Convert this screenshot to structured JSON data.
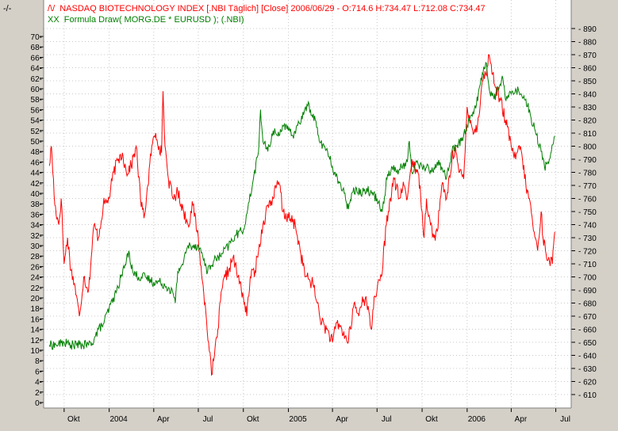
{
  "corner_label": "-/-",
  "chart_data": {
    "type": "line",
    "legend": {
      "placement": "top-left",
      "entries": [
        {
          "marker": "/\\/",
          "text": "NASDAQ BIOTECHNOLOGY INDEX [.NBI  Täglich] [Close] 2006/06/29 - O:714.6 H:734.47 L:712.08 C:734.47",
          "color": "#ff0000"
        },
        {
          "marker": "XX",
          "text": "Formula Draw( MORG.DE * EURUSD ); (.NBI)",
          "color": "#008000"
        }
      ]
    },
    "x_ticks": [
      "Okt",
      "2004",
      "Apr",
      "Jul",
      "Okt",
      "2005",
      "Apr",
      "Jul",
      "Okt",
      "2006",
      "Apr",
      "Jul"
    ],
    "left_axis": {
      "min": 0,
      "max": 70,
      "step": 2,
      "color": "#008000"
    },
    "right_axis": {
      "min": 610,
      "max": 890,
      "step": 10,
      "color": "#ff0000"
    },
    "grid": true,
    "colors": {
      "background": "#ffffff",
      "frame": "#d4d0c8",
      "grid": "#c8c8c8",
      "nbi": "#ff0000",
      "formula": "#008000"
    },
    "series": [
      {
        "name": "NASDAQ BIOTECHNOLOGY INDEX",
        "axis": "right",
        "color": "#ff0000",
        "anchors": [
          [
            "2003-09-01",
            785
          ],
          [
            "2003-09-05",
            800
          ],
          [
            "2003-09-12",
            755
          ],
          [
            "2003-09-20",
            740
          ],
          [
            "2003-09-25",
            760
          ],
          [
            "2003-10-01",
            710
          ],
          [
            "2003-10-08",
            730
          ],
          [
            "2003-10-15",
            705
          ],
          [
            "2003-10-22",
            695
          ],
          [
            "2003-11-01",
            670
          ],
          [
            "2003-11-10",
            700
          ],
          [
            "2003-11-20",
            690
          ],
          [
            "2003-12-01",
            740
          ],
          [
            "2003-12-10",
            730
          ],
          [
            "2003-12-20",
            755
          ],
          [
            "2004-01-01",
            760
          ],
          [
            "2004-01-10",
            780
          ],
          [
            "2004-01-20",
            790
          ],
          [
            "2004-01-28",
            795
          ],
          [
            "2004-02-05",
            780
          ],
          [
            "2004-02-15",
            785
          ],
          [
            "2004-02-25",
            800
          ],
          [
            "2004-03-05",
            760
          ],
          [
            "2004-03-12",
            745
          ],
          [
            "2004-03-20",
            770
          ],
          [
            "2004-03-28",
            800
          ],
          [
            "2004-04-05",
            810
          ],
          [
            "2004-04-12",
            800
          ],
          [
            "2004-04-17",
            795
          ],
          [
            "2004-04-20",
            842
          ],
          [
            "2004-04-24",
            800
          ],
          [
            "2004-05-01",
            775
          ],
          [
            "2004-05-10",
            760
          ],
          [
            "2004-05-20",
            765
          ],
          [
            "2004-06-01",
            750
          ],
          [
            "2004-06-10",
            740
          ],
          [
            "2004-06-20",
            755
          ],
          [
            "2004-07-01",
            730
          ],
          [
            "2004-07-08",
            700
          ],
          [
            "2004-07-15",
            680
          ],
          [
            "2004-07-22",
            650
          ],
          [
            "2004-07-28",
            625
          ],
          [
            "2004-08-03",
            640
          ],
          [
            "2004-08-10",
            660
          ],
          [
            "2004-08-18",
            690
          ],
          [
            "2004-08-25",
            700
          ],
          [
            "2004-09-01",
            705
          ],
          [
            "2004-09-10",
            715
          ],
          [
            "2004-09-20",
            700
          ],
          [
            "2004-10-01",
            685
          ],
          [
            "2004-10-08",
            670
          ],
          [
            "2004-10-15",
            700
          ],
          [
            "2004-10-25",
            705
          ],
          [
            "2004-11-01",
            720
          ],
          [
            "2004-11-10",
            740
          ],
          [
            "2004-11-20",
            755
          ],
          [
            "2004-12-01",
            760
          ],
          [
            "2004-12-08",
            770
          ],
          [
            "2004-12-15",
            770
          ],
          [
            "2004-12-20",
            750
          ],
          [
            "2005-01-01",
            745
          ],
          [
            "2005-01-15",
            740
          ],
          [
            "2005-01-25",
            720
          ],
          [
            "2005-02-05",
            700
          ],
          [
            "2005-02-20",
            695
          ],
          [
            "2005-03-01",
            680
          ],
          [
            "2005-03-10",
            665
          ],
          [
            "2005-03-20",
            660
          ],
          [
            "2005-04-01",
            650
          ],
          [
            "2005-04-10",
            665
          ],
          [
            "2005-04-20",
            660
          ],
          [
            "2005-05-01",
            650
          ],
          [
            "2005-05-08",
            660
          ],
          [
            "2005-05-15",
            680
          ],
          [
            "2005-05-25",
            670
          ],
          [
            "2005-06-01",
            685
          ],
          [
            "2005-06-10",
            680
          ],
          [
            "2005-06-20",
            660
          ],
          [
            "2005-06-25",
            685
          ],
          [
            "2005-07-01",
            690
          ],
          [
            "2005-07-10",
            700
          ],
          [
            "2005-07-20",
            740
          ],
          [
            "2005-07-28",
            760
          ],
          [
            "2005-08-05",
            775
          ],
          [
            "2005-08-15",
            760
          ],
          [
            "2005-08-25",
            770
          ],
          [
            "2005-09-01",
            760
          ],
          [
            "2005-09-10",
            790
          ],
          [
            "2005-09-20",
            780
          ],
          [
            "2005-09-27",
            770
          ],
          [
            "2005-10-01",
            750
          ],
          [
            "2005-10-05",
            730
          ],
          [
            "2005-10-10",
            760
          ],
          [
            "2005-10-18",
            740
          ],
          [
            "2005-10-25",
            730
          ],
          [
            "2005-11-01",
            735
          ],
          [
            "2005-11-10",
            770
          ],
          [
            "2005-11-20",
            760
          ],
          [
            "2005-12-01",
            790
          ],
          [
            "2005-12-08",
            800
          ],
          [
            "2005-12-15",
            780
          ],
          [
            "2005-12-25",
            775
          ],
          [
            "2006-01-01",
            830
          ],
          [
            "2006-01-08",
            820
          ],
          [
            "2006-01-15",
            810
          ],
          [
            "2006-01-22",
            815
          ],
          [
            "2006-02-01",
            850
          ],
          [
            "2006-02-08",
            855
          ],
          [
            "2006-02-15",
            870
          ],
          [
            "2006-02-22",
            855
          ],
          [
            "2006-03-01",
            845
          ],
          [
            "2006-03-10",
            835
          ],
          [
            "2006-03-20",
            820
          ],
          [
            "2006-04-01",
            800
          ],
          [
            "2006-04-10",
            790
          ],
          [
            "2006-04-20",
            800
          ],
          [
            "2006-05-01",
            770
          ],
          [
            "2006-05-08",
            760
          ],
          [
            "2006-05-15",
            740
          ],
          [
            "2006-05-25",
            720
          ],
          [
            "2006-06-01",
            750
          ],
          [
            "2006-06-05",
            730
          ],
          [
            "2006-06-10",
            720
          ],
          [
            "2006-06-18",
            712
          ],
          [
            "2006-06-24",
            710
          ],
          [
            "2006-06-29",
            734.47
          ]
        ]
      },
      {
        "name": "Formula Draw( MORG.DE * EURUSD ); (.NBI)",
        "axis": "left",
        "color": "#008000",
        "anchors": [
          [
            "2003-09-01",
            11
          ],
          [
            "2003-09-15",
            11
          ],
          [
            "2003-10-01",
            11.5
          ],
          [
            "2003-10-15",
            11
          ],
          [
            "2003-11-01",
            11
          ],
          [
            "2003-11-20",
            11
          ],
          [
            "2003-12-01",
            12
          ],
          [
            "2003-12-10",
            14
          ],
          [
            "2003-12-20",
            15
          ],
          [
            "2004-01-01",
            18
          ],
          [
            "2004-01-15",
            21
          ],
          [
            "2004-01-25",
            24
          ],
          [
            "2004-02-05",
            27
          ],
          [
            "2004-02-10",
            29
          ],
          [
            "2004-02-18",
            25
          ],
          [
            "2004-03-01",
            24
          ],
          [
            "2004-03-15",
            24
          ],
          [
            "2004-04-01",
            23
          ],
          [
            "2004-04-15",
            23
          ],
          [
            "2004-05-01",
            22
          ],
          [
            "2004-05-10",
            21
          ],
          [
            "2004-05-15",
            19
          ],
          [
            "2004-05-20",
            25
          ],
          [
            "2004-06-01",
            27
          ],
          [
            "2004-06-10",
            30
          ],
          [
            "2004-06-20",
            30
          ],
          [
            "2004-07-01",
            30
          ],
          [
            "2004-07-10",
            28
          ],
          [
            "2004-07-20",
            25
          ],
          [
            "2004-08-01",
            27
          ],
          [
            "2004-08-15",
            28
          ],
          [
            "2004-09-01",
            30
          ],
          [
            "2004-09-15",
            32
          ],
          [
            "2004-10-01",
            33
          ],
          [
            "2004-10-10",
            37
          ],
          [
            "2004-10-20",
            42
          ],
          [
            "2004-11-01",
            48
          ],
          [
            "2004-11-05",
            56
          ],
          [
            "2004-11-10",
            50
          ],
          [
            "2004-11-20",
            48
          ],
          [
            "2004-12-01",
            52
          ],
          [
            "2004-12-10",
            51
          ],
          [
            "2004-12-20",
            53
          ],
          [
            "2005-01-01",
            52
          ],
          [
            "2005-01-10",
            51
          ],
          [
            "2005-01-20",
            53
          ],
          [
            "2005-02-01",
            55
          ],
          [
            "2005-02-08",
            57
          ],
          [
            "2005-02-15",
            56
          ],
          [
            "2005-02-25",
            54
          ],
          [
            "2005-03-05",
            50
          ],
          [
            "2005-03-15",
            49
          ],
          [
            "2005-03-25",
            47
          ],
          [
            "2005-04-05",
            44
          ],
          [
            "2005-04-15",
            42
          ],
          [
            "2005-04-25",
            40
          ],
          [
            "2005-05-01",
            37
          ],
          [
            "2005-05-05",
            38
          ],
          [
            "2005-05-10",
            40
          ],
          [
            "2005-05-20",
            41
          ],
          [
            "2005-06-01",
            40
          ],
          [
            "2005-06-10",
            41
          ],
          [
            "2005-06-20",
            40
          ],
          [
            "2005-07-01",
            39
          ],
          [
            "2005-07-10",
            37
          ],
          [
            "2005-07-15",
            38
          ],
          [
            "2005-07-20",
            43
          ],
          [
            "2005-08-01",
            45
          ],
          [
            "2005-08-10",
            44
          ],
          [
            "2005-08-20",
            45
          ],
          [
            "2005-09-01",
            46
          ],
          [
            "2005-09-05",
            50
          ],
          [
            "2005-09-10",
            44
          ],
          [
            "2005-09-20",
            46
          ],
          [
            "2005-10-01",
            45
          ],
          [
            "2005-10-10",
            45
          ],
          [
            "2005-10-20",
            44
          ],
          [
            "2005-11-01",
            46
          ],
          [
            "2005-11-10",
            45
          ],
          [
            "2005-11-20",
            43
          ],
          [
            "2005-12-01",
            48
          ],
          [
            "2005-12-10",
            49
          ],
          [
            "2005-12-20",
            50
          ],
          [
            "2006-01-01",
            53
          ],
          [
            "2006-01-10",
            55
          ],
          [
            "2006-01-20",
            57
          ],
          [
            "2006-02-01",
            63
          ],
          [
            "2006-02-08",
            65
          ],
          [
            "2006-02-15",
            60
          ],
          [
            "2006-02-25",
            58
          ],
          [
            "2006-03-05",
            60
          ],
          [
            "2006-03-15",
            62
          ],
          [
            "2006-03-20",
            58
          ],
          [
            "2006-04-01",
            59
          ],
          [
            "2006-04-10",
            60
          ],
          [
            "2006-04-20",
            59
          ],
          [
            "2006-05-01",
            58
          ],
          [
            "2006-05-10",
            55
          ],
          [
            "2006-05-20",
            52
          ],
          [
            "2006-06-01",
            48
          ],
          [
            "2006-06-08",
            45
          ],
          [
            "2006-06-15",
            46
          ],
          [
            "2006-06-22",
            48
          ],
          [
            "2006-06-29",
            51
          ]
        ]
      }
    ]
  }
}
